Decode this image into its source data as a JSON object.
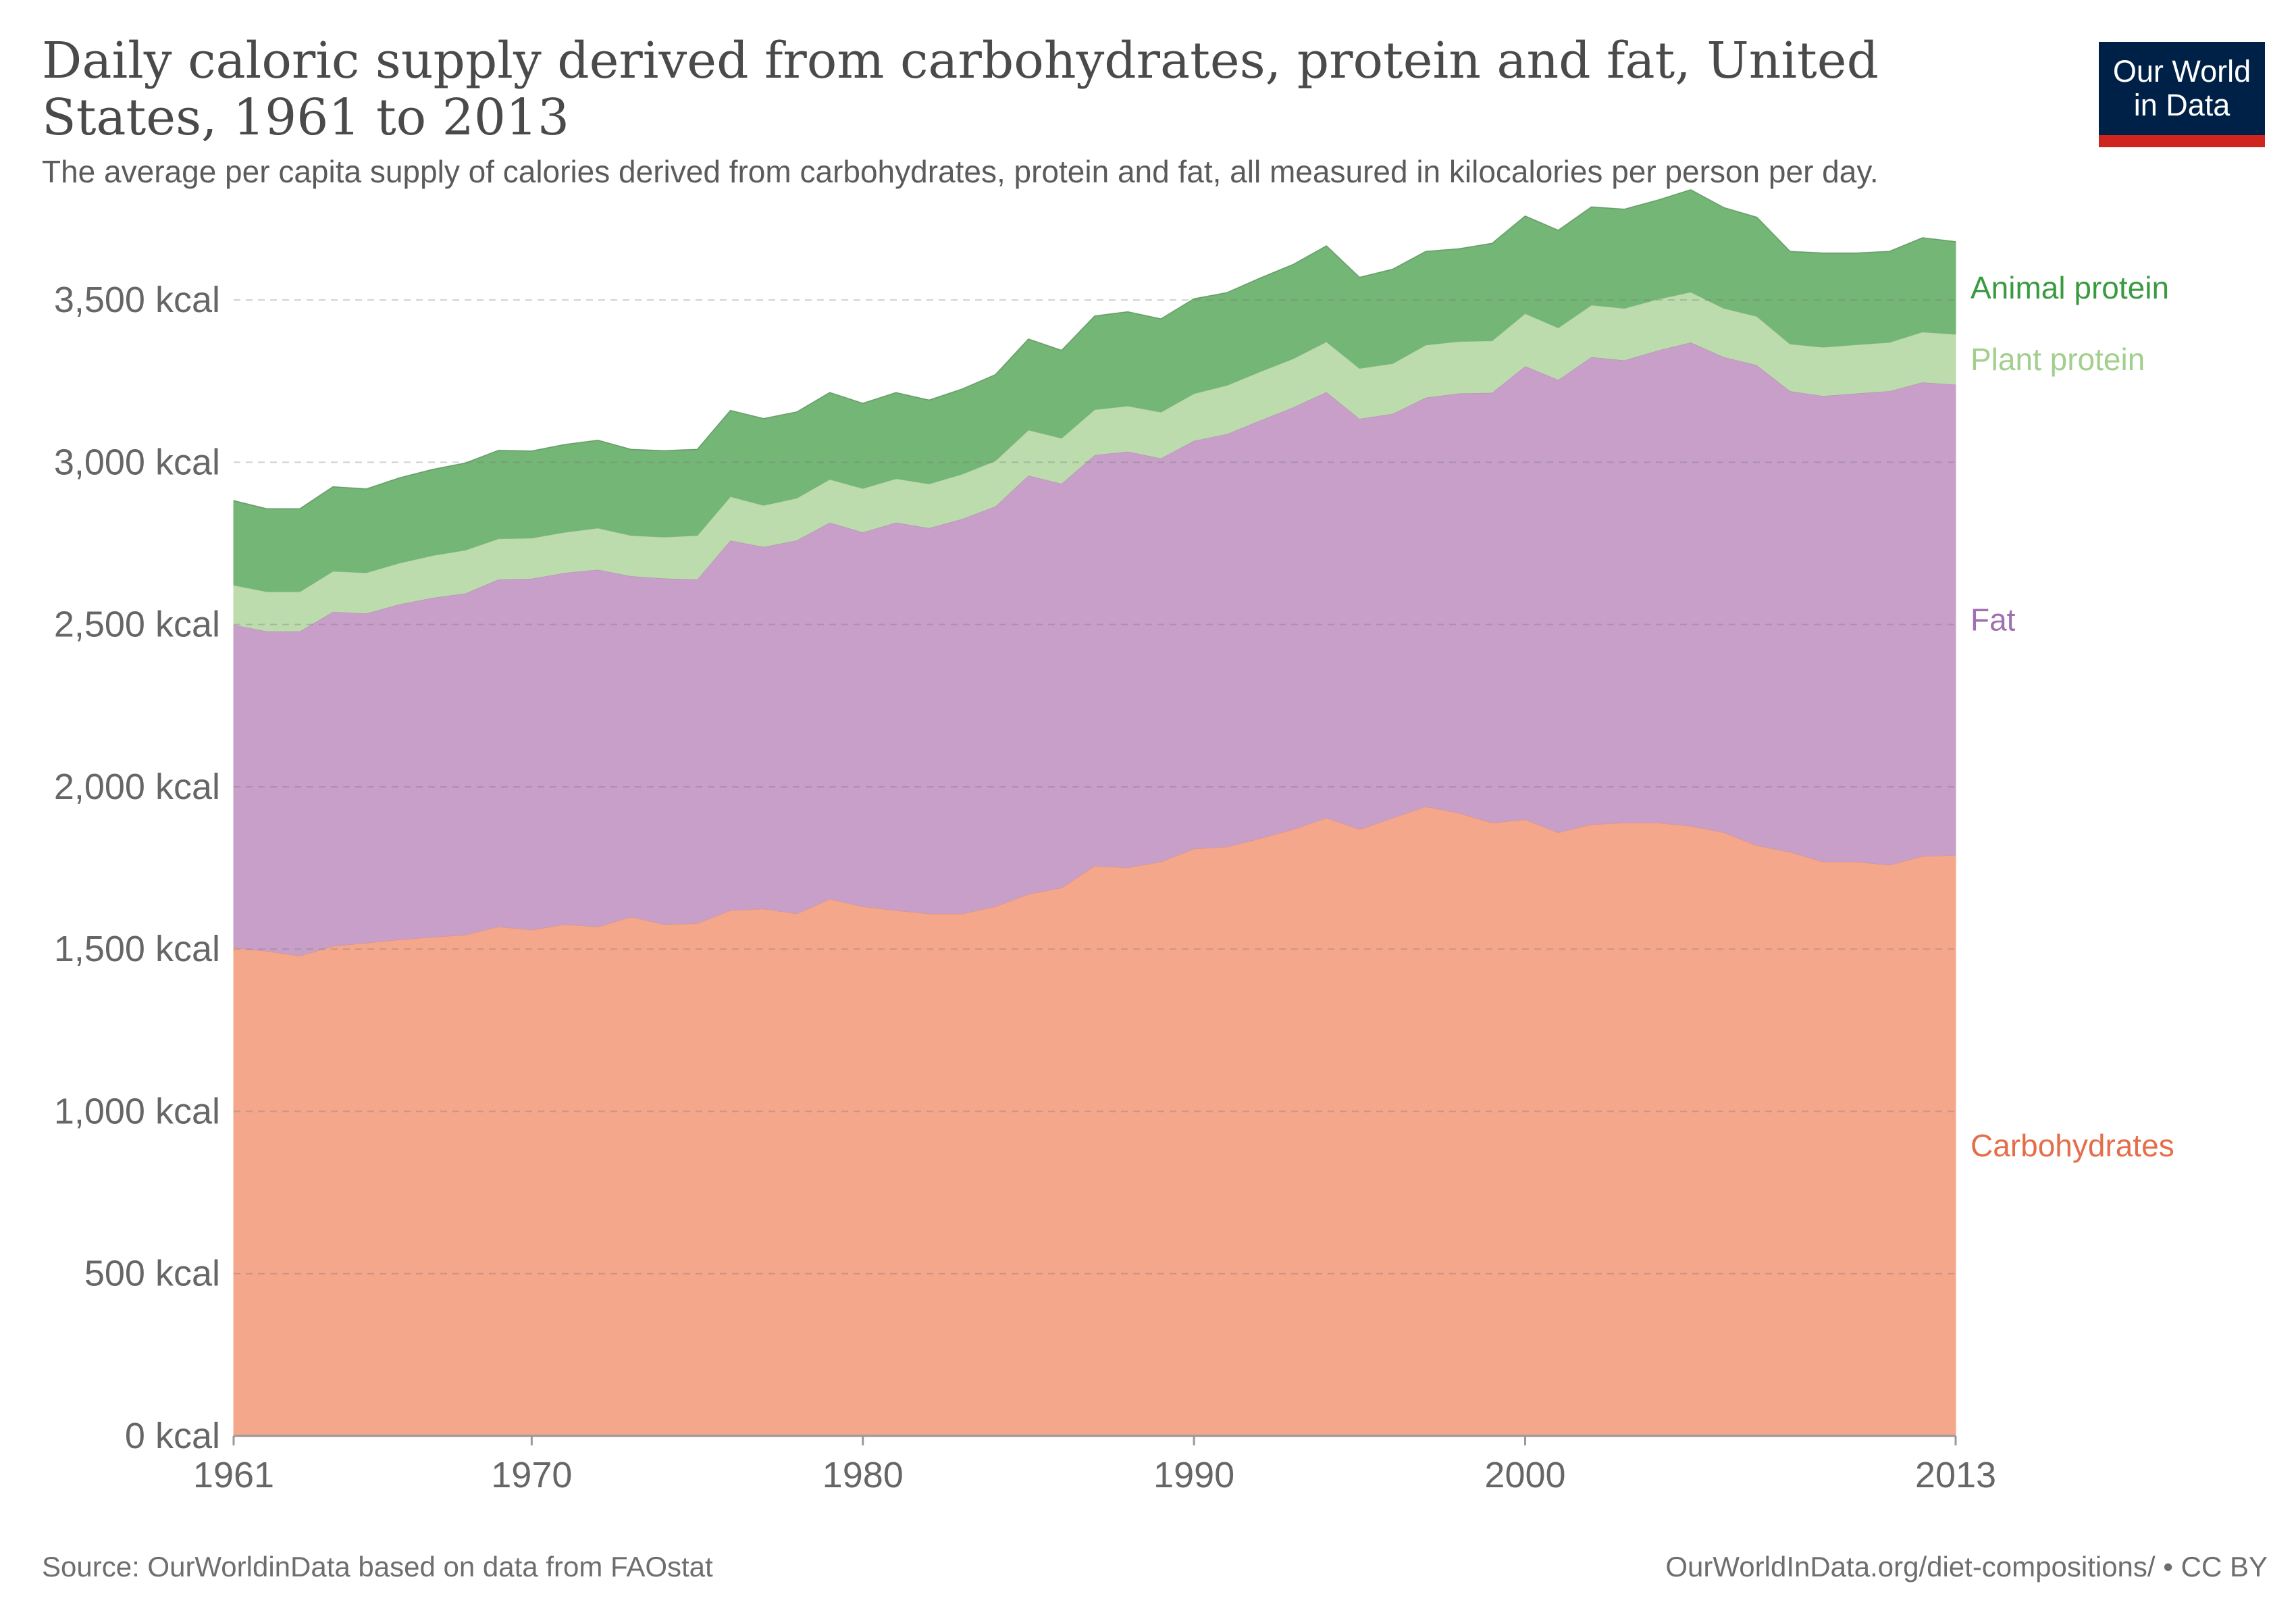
{
  "header": {
    "title": "Daily caloric supply derived from carbohydrates, protein and fat, United States, 1961 to 2013",
    "subtitle": "The average per capita supply of calories derived from carbohydrates, protein and fat, all measured in kilocalories per person per day."
  },
  "logo": {
    "line1": "Our World",
    "line2": "in Data",
    "bg_color": "#002147",
    "accent_color": "#ce261e"
  },
  "footer": {
    "source": "Source: OurWorldinData based on data from FAOstat",
    "link": "OurWorldInData.org/diet-compositions/ • CC BY"
  },
  "chart_data": {
    "type": "area",
    "stacked": true,
    "title": "Daily caloric supply derived from carbohydrates, protein and fat, United States, 1961 to 2013",
    "xlabel": "",
    "ylabel": "",
    "xlim": [
      1961,
      2013
    ],
    "ylim": [
      0,
      3800
    ],
    "x_ticks": [
      1961,
      1970,
      1980,
      1990,
      2000,
      2013
    ],
    "y_ticks": [
      {
        "value": 0,
        "label": "0 kcal"
      },
      {
        "value": 500,
        "label": "500 kcal"
      },
      {
        "value": 1000,
        "label": "1,000 kcal"
      },
      {
        "value": 1500,
        "label": "1,500 kcal"
      },
      {
        "value": 2000,
        "label": "2,000 kcal"
      },
      {
        "value": 2500,
        "label": "2,500 kcal"
      },
      {
        "value": 3000,
        "label": "3,000 kcal"
      },
      {
        "value": 3500,
        "label": "3,500 kcal"
      }
    ],
    "grid": true,
    "legend": "right",
    "x": [
      1961,
      1962,
      1963,
      1964,
      1965,
      1966,
      1967,
      1968,
      1969,
      1970,
      1971,
      1972,
      1973,
      1974,
      1975,
      1976,
      1977,
      1978,
      1979,
      1980,
      1981,
      1982,
      1983,
      1984,
      1985,
      1986,
      1987,
      1988,
      1989,
      1990,
      1991,
      1992,
      1993,
      1994,
      1995,
      1996,
      1997,
      1998,
      1999,
      2000,
      2001,
      2002,
      2003,
      2004,
      2005,
      2006,
      2007,
      2008,
      2009,
      2010,
      2011,
      2012,
      2013
    ],
    "series": [
      {
        "name": "Carbohydrates",
        "color": "#f4a78b",
        "label_color": "#e56e4a",
        "values": [
          1505,
          1495,
          1480,
          1510,
          1520,
          1530,
          1538,
          1545,
          1570,
          1560,
          1577,
          1570,
          1600,
          1577,
          1580,
          1620,
          1625,
          1610,
          1655,
          1632,
          1620,
          1610,
          1610,
          1632,
          1670,
          1690,
          1757,
          1752,
          1770,
          1810,
          1816,
          1842,
          1870,
          1905,
          1870,
          1905,
          1940,
          1920,
          1890,
          1900,
          1860,
          1885,
          1890,
          1890,
          1880,
          1860,
          1820,
          1800,
          1770,
          1770,
          1760,
          1787,
          1790
        ]
      },
      {
        "name": "Fat",
        "color": "#c89fc8",
        "label_color": "#a070b0",
        "values": [
          995,
          985,
          1000,
          1030,
          1015,
          1033,
          1045,
          1052,
          1070,
          1082,
          1083,
          1100,
          1050,
          1066,
          1060,
          1140,
          1115,
          1150,
          1160,
          1153,
          1195,
          1188,
          1216,
          1233,
          1290,
          1245,
          1266,
          1282,
          1243,
          1257,
          1272,
          1288,
          1300,
          1312,
          1265,
          1245,
          1260,
          1293,
          1325,
          1397,
          1395,
          1440,
          1425,
          1455,
          1490,
          1465,
          1480,
          1420,
          1435,
          1443,
          1460,
          1460,
          1450
        ]
      },
      {
        "name": "Plant protein",
        "color": "#bcdcad",
        "label_color": "#a2cf8e",
        "values": [
          122,
          122,
          122,
          125,
          125,
          127,
          130,
          133,
          125,
          125,
          125,
          128,
          125,
          127,
          135,
          135,
          128,
          130,
          133,
          135,
          135,
          136,
          138,
          140,
          140,
          140,
          140,
          140,
          142,
          145,
          150,
          150,
          150,
          155,
          155,
          155,
          162,
          160,
          160,
          162,
          160,
          160,
          160,
          158,
          155,
          150,
          150,
          145,
          150,
          150,
          150,
          155,
          155
        ]
      },
      {
        "name": "Animal protein",
        "color": "#73b676",
        "label_color": "#3a9a40",
        "values": [
          260,
          255,
          255,
          260,
          258,
          262,
          265,
          268,
          272,
          268,
          270,
          270,
          265,
          266,
          265,
          265,
          267,
          265,
          267,
          262,
          265,
          258,
          262,
          265,
          280,
          270,
          288,
          290,
          287,
          292,
          285,
          288,
          290,
          295,
          280,
          290,
          288,
          285,
          300,
          300,
          300,
          302,
          305,
          305,
          315,
          310,
          305,
          285,
          290,
          282,
          280,
          290,
          285
        ]
      }
    ]
  }
}
